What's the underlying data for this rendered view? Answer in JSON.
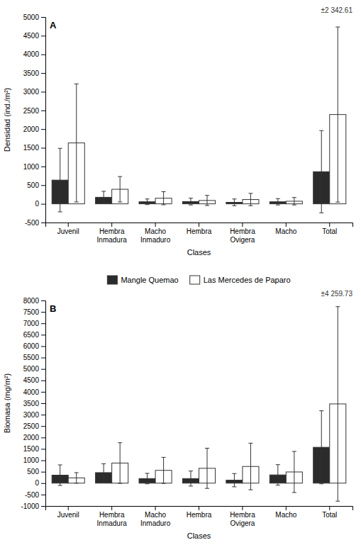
{
  "chart_data": [
    {
      "type": "bar",
      "title": "A",
      "categories": [
        "Juvenil",
        "Hembra\nInmadura",
        "Macho\nInmaduro",
        "Hembra",
        "Hembra\nOvigera",
        "Macho",
        "Total"
      ],
      "xlabel": "Clases",
      "ylabel": "Densidad (ind./m²)",
      "ylim": [
        -500,
        5000
      ],
      "yticks": [
        -500,
        0,
        500,
        1000,
        1500,
        2000,
        2500,
        3000,
        3500,
        4000,
        4500,
        5000
      ],
      "annotation": "±2 342.61",
      "series": [
        {
          "name": "Mangle Quemao",
          "color": "#2b2b2b",
          "values": [
            635,
            175,
            55,
            60,
            40,
            55,
            860
          ],
          "errors": [
            850,
            160,
            75,
            90,
            90,
            85,
            1100
          ]
        },
        {
          "name": "Las Mercedes de Paparo",
          "color": "#ffffff",
          "values": [
            1630,
            390,
            150,
            90,
            115,
            70,
            2390
          ],
          "errors": [
            1580,
            340,
            175,
            135,
            165,
            100,
            2343
          ]
        }
      ]
    },
    {
      "type": "bar",
      "title": "B",
      "categories": [
        "Juvenil",
        "Hembra\nInmadura",
        "Macho\nInmaduro",
        "Hembra",
        "Hembra\nOvigera",
        "Macho",
        "Total"
      ],
      "xlabel": "Clases",
      "ylabel": "Biomasa (mg/m²)",
      "ylim": [
        -1000,
        8000
      ],
      "yticks": [
        -1000,
        -500,
        0,
        500,
        1000,
        1500,
        2000,
        2500,
        3000,
        3500,
        4000,
        4500,
        5000,
        5500,
        6000,
        6500,
        7000,
        7500,
        8000
      ],
      "annotation": "±4 259.73",
      "series": [
        {
          "color": "#2b2b2b",
          "values": [
            350,
            460,
            200,
            200,
            130,
            360,
            1570
          ],
          "errors": [
            450,
            390,
            230,
            330,
            290,
            450,
            1600
          ]
        },
        {
          "color": "#ffffff",
          "values": [
            230,
            880,
            560,
            650,
            730,
            490,
            3470
          ],
          "errors": [
            230,
            890,
            570,
            880,
            1020,
            900,
            4260
          ]
        }
      ]
    }
  ]
}
